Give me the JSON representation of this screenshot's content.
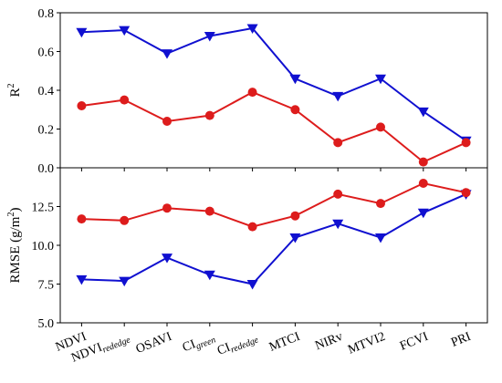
{
  "chart_data": [
    {
      "type": "line",
      "ylabel": "R",
      "ylabel_sup": "2",
      "ylim": [
        0.0,
        0.8
      ],
      "yticks": [
        "0.0",
        "0.2",
        "0.4",
        "0.6",
        "0.8"
      ],
      "grid": false,
      "series": [
        {
          "color": "#1010d0",
          "marker": "triangle-down",
          "values": [
            0.7,
            0.71,
            0.59,
            0.68,
            0.72,
            0.46,
            0.37,
            0.46,
            0.29,
            0.14
          ]
        },
        {
          "color": "#dd1c1c",
          "marker": "circle",
          "values": [
            0.32,
            0.35,
            0.24,
            0.27,
            0.39,
            0.3,
            0.13,
            0.21,
            0.03,
            0.13
          ]
        }
      ]
    },
    {
      "type": "line",
      "ylabel": "RMSE (g/m",
      "ylabel_sup": "2",
      "ylabel_close": ")",
      "ylim": [
        5.0,
        15.0
      ],
      "yticks": [
        "5.0",
        "7.5",
        "10.0",
        "12.5"
      ],
      "grid": false,
      "series": [
        {
          "color": "#1010d0",
          "marker": "triangle-down",
          "values": [
            7.8,
            7.7,
            9.2,
            8.1,
            7.5,
            10.5,
            11.4,
            10.5,
            12.1,
            13.3
          ]
        },
        {
          "color": "#dd1c1c",
          "marker": "circle",
          "values": [
            11.7,
            11.6,
            12.4,
            12.2,
            11.2,
            11.9,
            13.3,
            12.7,
            14.0,
            13.4
          ]
        }
      ]
    }
  ],
  "categories": [
    {
      "main": "NDVI",
      "sub": ""
    },
    {
      "main": "NDVI",
      "sub": "rededge"
    },
    {
      "main": "OSAVI",
      "sub": ""
    },
    {
      "main": "CI",
      "sub": "green"
    },
    {
      "main": "CI",
      "sub": "rededge"
    },
    {
      "main": "MTCI",
      "sub": ""
    },
    {
      "main": "NIRv",
      "sub": ""
    },
    {
      "main": "MTVI2",
      "sub": ""
    },
    {
      "main": "FCVI",
      "sub": ""
    },
    {
      "main": "PRI",
      "sub": ""
    }
  ]
}
